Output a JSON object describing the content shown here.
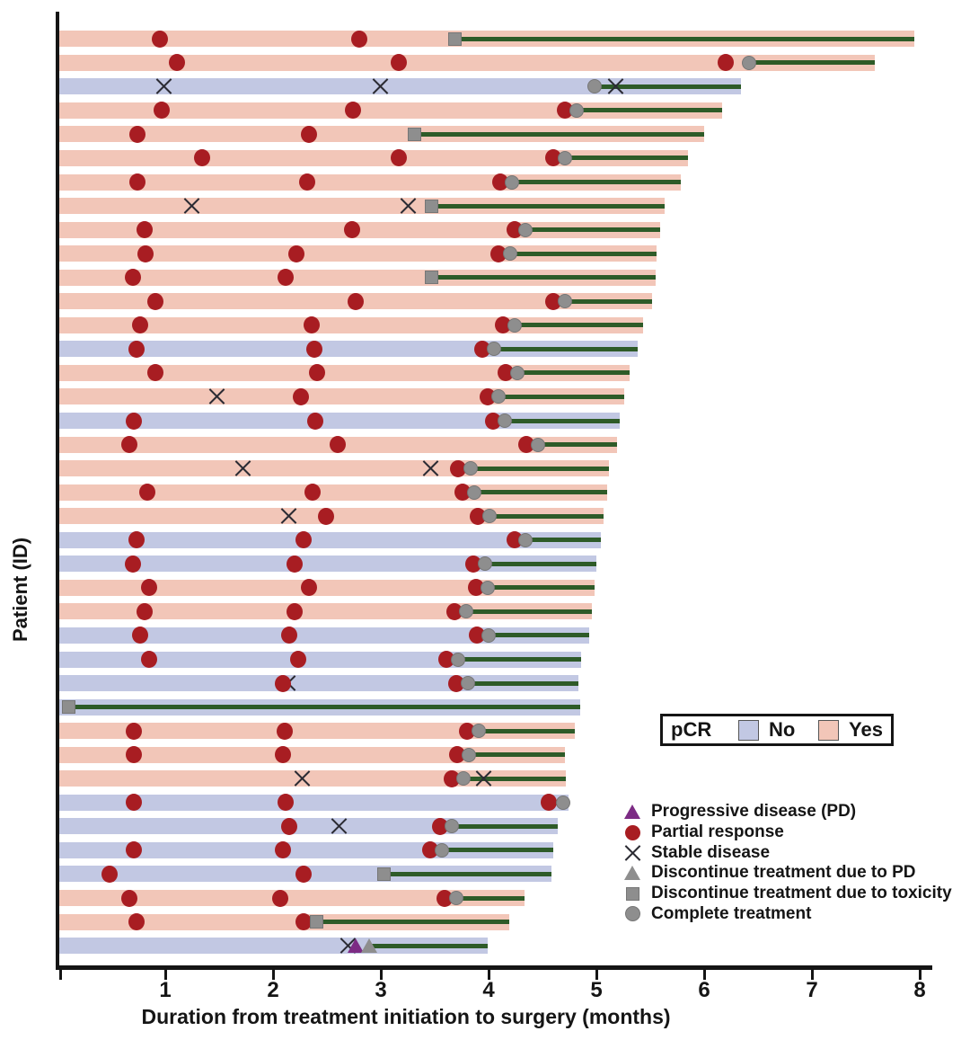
{
  "axes": {
    "x_label": "Duration from treatment initiation to surgery (months)",
    "y_label": "Patient (ID)",
    "x_ticks": [
      1,
      2,
      3,
      4,
      5,
      6,
      7,
      8
    ],
    "x_range": [
      0,
      8
    ],
    "y_tick_labels": "none"
  },
  "pcr_legend": {
    "title": "pCR",
    "no_label": "No",
    "yes_label": "Yes"
  },
  "marker_legend": {
    "items": [
      {
        "icon": "progressive-disease-triangle",
        "label": "Progressive disease (PD)"
      },
      {
        "icon": "partial-response-circle",
        "label": "Partial response"
      },
      {
        "icon": "stable-disease-x",
        "label": "Stable disease"
      },
      {
        "icon": "discontinue-pd-triangle",
        "label": "Discontinue treatment due to PD"
      },
      {
        "icon": "discontinue-toxicity-square",
        "label": "Discontinue treatment due to toxicity"
      },
      {
        "icon": "complete-treatment-circle",
        "label": "Complete treatment"
      }
    ]
  },
  "colors": {
    "pcr_yes": "#f2c6b8",
    "pcr_no": "#c2c8e3",
    "partial_response": "#a81d22",
    "treatment_line": "#2e5b28",
    "discontinue_gray": "#8e8e8e",
    "progressive_disease": "#7c2b84",
    "stable_disease_x": "#2b2b33",
    "axis": "#151515"
  },
  "chart_data": {
    "type": "bar",
    "subtype": "swimmer-plot",
    "title": "",
    "xlabel": "Duration from treatment initiation to surgery (months)",
    "ylabel": "Patient (ID)",
    "xlim": [
      0,
      8
    ],
    "grid": false,
    "marker_types": {
      "pr": "Partial response",
      "sd": "Stable disease",
      "pd": "Progressive disease (PD)",
      "dpd": "Discontinue treatment due to PD",
      "dtox": "Discontinue treatment due to toxicity",
      "ct": "Complete treatment"
    },
    "bar_value_units": "months",
    "rows": [
      {
        "pcr": "Yes",
        "end": 7.95,
        "line_start": 3.69,
        "events": [
          {
            "t": "pr",
            "x": 0.95
          },
          {
            "t": "pr",
            "x": 2.8
          },
          {
            "t": "dtox",
            "x": 3.69
          }
        ]
      },
      {
        "pcr": "Yes",
        "end": 7.58,
        "line_start": 6.42,
        "events": [
          {
            "t": "pr",
            "x": 1.11
          },
          {
            "t": "pr",
            "x": 3.17
          },
          {
            "t": "pr",
            "x": 6.2
          },
          {
            "t": "ct",
            "x": 6.42
          }
        ]
      },
      {
        "pcr": "No",
        "end": 6.34,
        "line_start": 4.98,
        "events": [
          {
            "t": "sd",
            "x": 0.99
          },
          {
            "t": "sd",
            "x": 2.84
          },
          {
            "t": "sd",
            "x": 4.86
          },
          {
            "t": "ct",
            "x": 4.98
          }
        ]
      },
      {
        "pcr": "Yes",
        "end": 6.17,
        "line_start": 4.82,
        "events": [
          {
            "t": "pr",
            "x": 0.97
          },
          {
            "t": "pr",
            "x": 2.74
          },
          {
            "t": "pr",
            "x": 4.71
          },
          {
            "t": "ct",
            "x": 4.82
          }
        ]
      },
      {
        "pcr": "Yes",
        "end": 6.0,
        "line_start": 3.31,
        "events": [
          {
            "t": "pr",
            "x": 0.74
          },
          {
            "t": "pr",
            "x": 2.33
          },
          {
            "t": "dtox",
            "x": 3.31
          }
        ]
      },
      {
        "pcr": "Yes",
        "end": 5.85,
        "line_start": 4.71,
        "events": [
          {
            "t": "pr",
            "x": 1.34
          },
          {
            "t": "pr",
            "x": 3.17
          },
          {
            "t": "pr",
            "x": 4.6
          },
          {
            "t": "ct",
            "x": 4.71
          }
        ]
      },
      {
        "pcr": "Yes",
        "end": 5.78,
        "line_start": 4.22,
        "events": [
          {
            "t": "pr",
            "x": 0.74
          },
          {
            "t": "pr",
            "x": 2.32
          },
          {
            "t": "pr",
            "x": 4.11
          },
          {
            "t": "ct",
            "x": 4.22
          }
        ]
      },
      {
        "pcr": "Yes",
        "end": 5.63,
        "line_start": 3.47,
        "events": [
          {
            "t": "sd",
            "x": 0.77
          },
          {
            "t": "sd",
            "x": 2.62
          },
          {
            "t": "dtox",
            "x": 3.47
          }
        ]
      },
      {
        "pcr": "Yes",
        "end": 5.59,
        "line_start": 4.34,
        "events": [
          {
            "t": "pr",
            "x": 0.81
          },
          {
            "t": "pr",
            "x": 2.73
          },
          {
            "t": "pr",
            "x": 4.24
          },
          {
            "t": "ct",
            "x": 4.34
          }
        ]
      },
      {
        "pcr": "Yes",
        "end": 5.56,
        "line_start": 4.2,
        "events": [
          {
            "t": "pr",
            "x": 0.82
          },
          {
            "t": "pr",
            "x": 2.22
          },
          {
            "t": "pr",
            "x": 4.09
          },
          {
            "t": "ct",
            "x": 4.2
          }
        ]
      },
      {
        "pcr": "Yes",
        "end": 5.55,
        "line_start": 3.47,
        "events": [
          {
            "t": "pr",
            "x": 0.7
          },
          {
            "t": "pr",
            "x": 2.12
          },
          {
            "t": "dtox",
            "x": 3.47
          }
        ]
      },
      {
        "pcr": "Yes",
        "end": 5.52,
        "line_start": 4.71,
        "events": [
          {
            "t": "pr",
            "x": 0.91
          },
          {
            "t": "pr",
            "x": 2.77
          },
          {
            "t": "pr",
            "x": 4.6
          },
          {
            "t": "ct",
            "x": 4.71
          }
        ]
      },
      {
        "pcr": "Yes",
        "end": 5.43,
        "line_start": 4.24,
        "events": [
          {
            "t": "pr",
            "x": 0.77
          },
          {
            "t": "pr",
            "x": 2.36
          },
          {
            "t": "pr",
            "x": 4.13
          },
          {
            "t": "ct",
            "x": 4.24
          }
        ]
      },
      {
        "pcr": "No",
        "end": 5.38,
        "line_start": 4.05,
        "events": [
          {
            "t": "pr",
            "x": 0.73
          },
          {
            "t": "pr",
            "x": 2.38
          },
          {
            "t": "pr",
            "x": 3.94
          },
          {
            "t": "ct",
            "x": 4.05
          }
        ]
      },
      {
        "pcr": "Yes",
        "end": 5.31,
        "line_start": 4.27,
        "events": [
          {
            "t": "pr",
            "x": 0.91
          },
          {
            "t": "pr",
            "x": 2.41
          },
          {
            "t": "pr",
            "x": 4.16
          },
          {
            "t": "ct",
            "x": 4.27
          }
        ]
      },
      {
        "pcr": "Yes",
        "end": 5.26,
        "line_start": 4.09,
        "events": [
          {
            "t": "sd",
            "x": 0.69
          },
          {
            "t": "pr",
            "x": 2.26
          },
          {
            "t": "pr",
            "x": 3.99
          },
          {
            "t": "ct",
            "x": 4.09
          }
        ]
      },
      {
        "pcr": "No",
        "end": 5.22,
        "line_start": 4.15,
        "events": [
          {
            "t": "pr",
            "x": 0.71
          },
          {
            "t": "pr",
            "x": 2.39
          },
          {
            "t": "pr",
            "x": 4.04
          },
          {
            "t": "ct",
            "x": 4.15
          }
        ]
      },
      {
        "pcr": "Yes",
        "end": 5.19,
        "line_start": 4.46,
        "events": [
          {
            "t": "pr",
            "x": 0.67
          },
          {
            "t": "pr",
            "x": 2.6
          },
          {
            "t": "pr",
            "x": 4.35
          },
          {
            "t": "ct",
            "x": 4.46
          }
        ]
      },
      {
        "pcr": "Yes",
        "end": 5.12,
        "line_start": 3.83,
        "events": [
          {
            "t": "sd",
            "x": 0.77
          },
          {
            "t": "sd",
            "x": 2.35
          },
          {
            "t": "pr",
            "x": 3.72
          },
          {
            "t": "ct",
            "x": 3.83
          }
        ]
      },
      {
        "pcr": "Yes",
        "end": 5.1,
        "line_start": 3.87,
        "events": [
          {
            "t": "pr",
            "x": 0.83
          },
          {
            "t": "pr",
            "x": 2.37
          },
          {
            "t": "pr",
            "x": 3.76
          },
          {
            "t": "ct",
            "x": 3.87
          }
        ]
      },
      {
        "pcr": "Yes",
        "end": 5.07,
        "line_start": 4.01,
        "events": [
          {
            "t": "sd",
            "x": 0.88
          },
          {
            "t": "pr",
            "x": 2.49
          },
          {
            "t": "pr",
            "x": 3.9
          },
          {
            "t": "ct",
            "x": 4.01
          }
        ]
      },
      {
        "pcr": "No",
        "end": 5.04,
        "line_start": 4.34,
        "events": [
          {
            "t": "pr",
            "x": 0.73
          },
          {
            "t": "pr",
            "x": 2.28
          },
          {
            "t": "pr",
            "x": 4.24
          },
          {
            "t": "ct",
            "x": 4.34
          }
        ]
      },
      {
        "pcr": "No",
        "end": 5.0,
        "line_start": 3.97,
        "events": [
          {
            "t": "pr",
            "x": 0.7
          },
          {
            "t": "pr",
            "x": 2.2
          },
          {
            "t": "pr",
            "x": 3.86
          },
          {
            "t": "ct",
            "x": 3.97
          }
        ]
      },
      {
        "pcr": "Yes",
        "end": 4.98,
        "line_start": 3.99,
        "events": [
          {
            "t": "pr",
            "x": 0.85
          },
          {
            "t": "pr",
            "x": 2.33
          },
          {
            "t": "pr",
            "x": 3.88
          },
          {
            "t": "ct",
            "x": 3.99
          }
        ]
      },
      {
        "pcr": "Yes",
        "end": 4.96,
        "line_start": 3.79,
        "events": [
          {
            "t": "pr",
            "x": 0.81
          },
          {
            "t": "pr",
            "x": 2.2
          },
          {
            "t": "pr",
            "x": 3.68
          },
          {
            "t": "ct",
            "x": 3.79
          }
        ]
      },
      {
        "pcr": "No",
        "end": 4.93,
        "line_start": 4.0,
        "events": [
          {
            "t": "pr",
            "x": 0.77
          },
          {
            "t": "pr",
            "x": 2.15
          },
          {
            "t": "pr",
            "x": 3.89
          },
          {
            "t": "ct",
            "x": 4.0
          }
        ]
      },
      {
        "pcr": "No",
        "end": 4.86,
        "line_start": 3.72,
        "events": [
          {
            "t": "pr",
            "x": 0.85
          },
          {
            "t": "pr",
            "x": 2.23
          },
          {
            "t": "pr",
            "x": 3.61
          },
          {
            "t": "ct",
            "x": 3.72
          }
        ]
      },
      {
        "pcr": "No",
        "end": 4.83,
        "line_start": 3.81,
        "events": [
          {
            "t": "sd",
            "x": 0.71
          },
          {
            "t": "pr",
            "x": 2.09
          },
          {
            "t": "pr",
            "x": 3.7
          },
          {
            "t": "ct",
            "x": 3.81
          }
        ]
      },
      {
        "pcr": "No",
        "end": 4.85,
        "line_start": 0.1,
        "events": [
          {
            "t": "dtox",
            "x": 0.1
          }
        ]
      },
      {
        "pcr": "Yes",
        "end": 4.8,
        "line_start": 3.91,
        "events": [
          {
            "t": "pr",
            "x": 0.71
          },
          {
            "t": "pr",
            "x": 2.11
          },
          {
            "t": "pr",
            "x": 3.8
          },
          {
            "t": "ct",
            "x": 3.91
          }
        ]
      },
      {
        "pcr": "Yes",
        "end": 4.71,
        "line_start": 3.82,
        "events": [
          {
            "t": "pr",
            "x": 0.71
          },
          {
            "t": "pr",
            "x": 2.09
          },
          {
            "t": "pr",
            "x": 3.71
          },
          {
            "t": "ct",
            "x": 3.82
          }
        ]
      },
      {
        "pcr": "Yes",
        "end": 4.72,
        "line_start": 3.77,
        "events": [
          {
            "t": "sd",
            "x": 0.69
          },
          {
            "t": "sd",
            "x": 2.21
          },
          {
            "t": "pr",
            "x": 3.66
          },
          {
            "t": "ct",
            "x": 3.77
          }
        ]
      },
      {
        "pcr": "No",
        "end": 4.74,
        "line_start": 4.69,
        "events": [
          {
            "t": "pr",
            "x": 0.71
          },
          {
            "t": "pr",
            "x": 2.12
          },
          {
            "t": "pr",
            "x": 4.56
          },
          {
            "t": "ct",
            "x": 4.69
          }
        ]
      },
      {
        "pcr": "No",
        "end": 4.64,
        "line_start": 3.66,
        "events": [
          {
            "t": "sd",
            "x": 0.71
          },
          {
            "t": "pr",
            "x": 2.15
          },
          {
            "t": "pr",
            "x": 3.55
          },
          {
            "t": "ct",
            "x": 3.66
          }
        ]
      },
      {
        "pcr": "No",
        "end": 4.6,
        "line_start": 3.57,
        "events": [
          {
            "t": "pr",
            "x": 0.71
          },
          {
            "t": "pr",
            "x": 2.09
          },
          {
            "t": "pr",
            "x": 3.46
          },
          {
            "t": "ct",
            "x": 3.57
          }
        ]
      },
      {
        "pcr": "No",
        "end": 4.58,
        "line_start": 3.03,
        "events": [
          {
            "t": "pr",
            "x": 0.48
          },
          {
            "t": "pr",
            "x": 2.28
          },
          {
            "t": "dtox",
            "x": 3.03
          }
        ]
      },
      {
        "pcr": "Yes",
        "end": 4.33,
        "line_start": 3.7,
        "events": [
          {
            "t": "pr",
            "x": 0.67
          },
          {
            "t": "pr",
            "x": 2.07
          },
          {
            "t": "pr",
            "x": 3.59
          },
          {
            "t": "ct",
            "x": 3.7
          }
        ]
      },
      {
        "pcr": "Yes",
        "end": 4.19,
        "line_start": 2.4,
        "events": [
          {
            "t": "pr",
            "x": 0.73
          },
          {
            "t": "pr",
            "x": 2.28
          },
          {
            "t": "dtox",
            "x": 2.4
          }
        ]
      },
      {
        "pcr": "No",
        "end": 3.99,
        "line_start": 2.89,
        "events": [
          {
            "t": "sd",
            "x": 0.64
          },
          {
            "t": "pd",
            "x": 2.77
          },
          {
            "t": "dpd",
            "x": 2.89
          }
        ]
      }
    ]
  }
}
